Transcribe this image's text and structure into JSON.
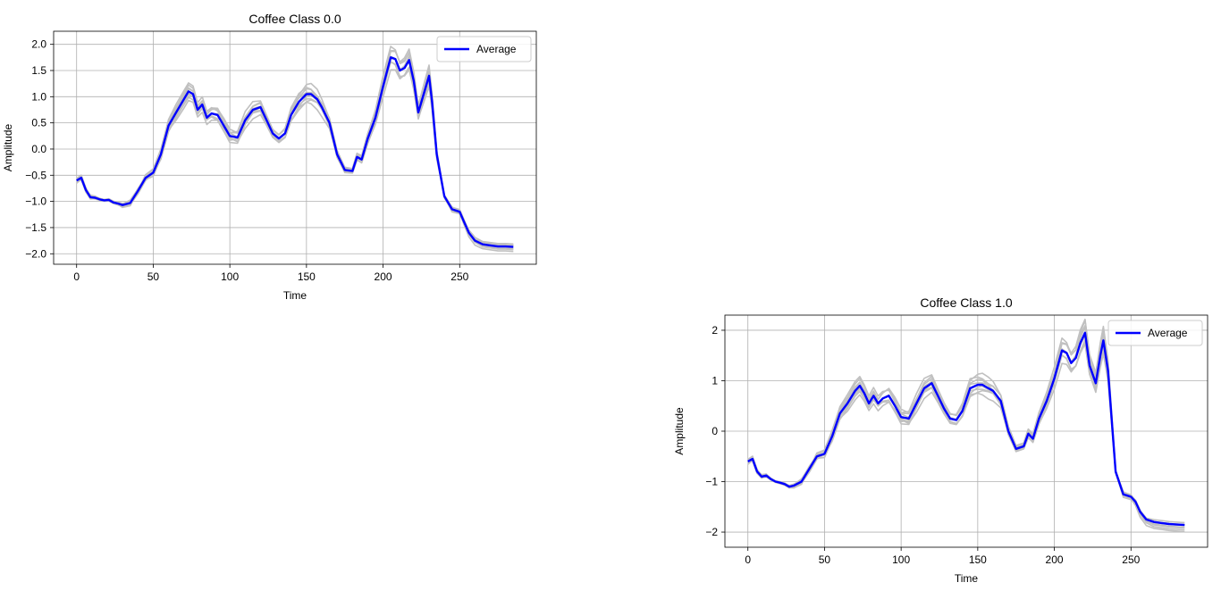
{
  "chart_data": [
    {
      "type": "line",
      "title": "Coffee Class 0.0",
      "xlabel": "Time",
      "ylabel": "Amplitude",
      "xlim": [
        -15,
        300
      ],
      "ylim": [
        -2.2,
        2.25
      ],
      "xticks": [
        0,
        50,
        100,
        150,
        200,
        250
      ],
      "xtick_labels": [
        "0",
        "50",
        "100",
        "150",
        "200",
        "250"
      ],
      "yticks": [
        -2.0,
        -1.5,
        -1.0,
        -0.5,
        0.0,
        0.5,
        1.0,
        1.5,
        2.0
      ],
      "ytick_labels": [
        "−2.0",
        "−1.5",
        "−1.0",
        "−0.5",
        "0.0",
        "0.5",
        "1.0",
        "1.5",
        "2.0"
      ],
      "grid": true,
      "legend": {
        "position": "top-right",
        "entries": [
          "Average"
        ]
      },
      "series": [
        {
          "name": "Average",
          "color": "#0000ff",
          "x": [
            0,
            3,
            6,
            9,
            12,
            15,
            18,
            21,
            24,
            27,
            30,
            35,
            40,
            45,
            50,
            55,
            60,
            65,
            70,
            73,
            76,
            79,
            82,
            85,
            88,
            92,
            96,
            100,
            105,
            110,
            115,
            120,
            124,
            128,
            132,
            136,
            140,
            145,
            150,
            153,
            157,
            160,
            165,
            170,
            175,
            180,
            183,
            186,
            190,
            195,
            200,
            205,
            208,
            211,
            214,
            217,
            220,
            223,
            227,
            230,
            232,
            235,
            240,
            245,
            250,
            253,
            256,
            260,
            265,
            270,
            275,
            280,
            285
          ],
          "y": [
            -0.6,
            -0.55,
            -0.78,
            -0.92,
            -0.93,
            -0.96,
            -0.98,
            -0.97,
            -1.02,
            -1.04,
            -1.07,
            -1.03,
            -0.8,
            -0.55,
            -0.45,
            -0.1,
            0.45,
            0.7,
            0.95,
            1.1,
            1.05,
            0.75,
            0.85,
            0.6,
            0.68,
            0.65,
            0.45,
            0.25,
            0.22,
            0.55,
            0.75,
            0.8,
            0.55,
            0.3,
            0.2,
            0.3,
            0.65,
            0.9,
            1.05,
            1.05,
            0.95,
            0.8,
            0.5,
            -0.1,
            -0.4,
            -0.42,
            -0.15,
            -0.2,
            0.2,
            0.6,
            1.2,
            1.75,
            1.72,
            1.5,
            1.55,
            1.7,
            1.3,
            0.7,
            1.1,
            1.4,
            0.9,
            -0.1,
            -0.9,
            -1.15,
            -1.2,
            -1.4,
            -1.6,
            -1.75,
            -1.82,
            -1.84,
            -1.86,
            -1.86,
            -1.87
          ]
        },
        {
          "name": "",
          "color": "#c0c0c0",
          "x": [],
          "y": []
        }
      ],
      "sample_offsets": [
        0.07,
        -0.06,
        0.1,
        -0.09,
        0.04,
        -0.03,
        0.12,
        -0.12
      ],
      "sample_tail_offsets": [
        0.06,
        -0.04,
        0.1,
        -0.1,
        0.03,
        -0.02,
        0.08,
        -0.13
      ]
    },
    {
      "type": "line",
      "title": "Coffee Class 1.0",
      "xlabel": "Time",
      "ylabel": "Amplitude",
      "xlim": [
        -15,
        300
      ],
      "ylim": [
        -2.3,
        2.3
      ],
      "xticks": [
        0,
        50,
        100,
        150,
        200,
        250
      ],
      "xtick_labels": [
        "0",
        "50",
        "100",
        "150",
        "200",
        "250"
      ],
      "yticks": [
        -2,
        -1,
        0,
        1,
        2
      ],
      "ytick_labels": [
        "−2",
        "−1",
        "0",
        "1",
        "2"
      ],
      "grid": true,
      "legend": {
        "position": "top-right",
        "entries": [
          "Average"
        ]
      },
      "series": [
        {
          "name": "Average",
          "color": "#0000ff",
          "x": [
            0,
            3,
            6,
            9,
            12,
            15,
            18,
            21,
            24,
            27,
            30,
            35,
            40,
            45,
            50,
            55,
            60,
            65,
            70,
            73,
            76,
            79,
            82,
            85,
            88,
            92,
            96,
            100,
            105,
            110,
            115,
            120,
            124,
            128,
            132,
            136,
            140,
            145,
            150,
            153,
            157,
            160,
            165,
            170,
            175,
            180,
            183,
            186,
            190,
            195,
            200,
            205,
            208,
            211,
            214,
            217,
            220,
            223,
            227,
            230,
            232,
            235,
            240,
            245,
            250,
            253,
            256,
            260,
            265,
            270,
            275,
            280,
            285
          ],
          "y": [
            -0.6,
            -0.55,
            -0.8,
            -0.9,
            -0.88,
            -0.95,
            -1.0,
            -1.02,
            -1.05,
            -1.1,
            -1.08,
            -1.0,
            -0.75,
            -0.5,
            -0.45,
            -0.1,
            0.35,
            0.55,
            0.8,
            0.9,
            0.75,
            0.55,
            0.7,
            0.55,
            0.65,
            0.7,
            0.5,
            0.28,
            0.25,
            0.55,
            0.85,
            0.95,
            0.7,
            0.45,
            0.25,
            0.22,
            0.4,
            0.85,
            0.92,
            0.92,
            0.85,
            0.8,
            0.6,
            0.0,
            -0.35,
            -0.3,
            -0.05,
            -0.15,
            0.25,
            0.6,
            1.05,
            1.6,
            1.55,
            1.35,
            1.45,
            1.75,
            1.95,
            1.3,
            0.95,
            1.5,
            1.8,
            1.2,
            -0.8,
            -1.25,
            -1.3,
            -1.4,
            -1.6,
            -1.75,
            -1.8,
            -1.82,
            -1.84,
            -1.85,
            -1.86
          ]
        },
        {
          "name": "",
          "color": "#c0c0c0",
          "x": [],
          "y": []
        }
      ],
      "sample_offsets": [
        0.08,
        -0.07,
        0.13,
        -0.1,
        0.05,
        -0.03,
        0.15,
        -0.14
      ],
      "sample_tail_offsets": [
        0.05,
        -0.05,
        0.08,
        -0.2,
        0.02,
        -0.04,
        0.06,
        -0.25
      ]
    }
  ]
}
